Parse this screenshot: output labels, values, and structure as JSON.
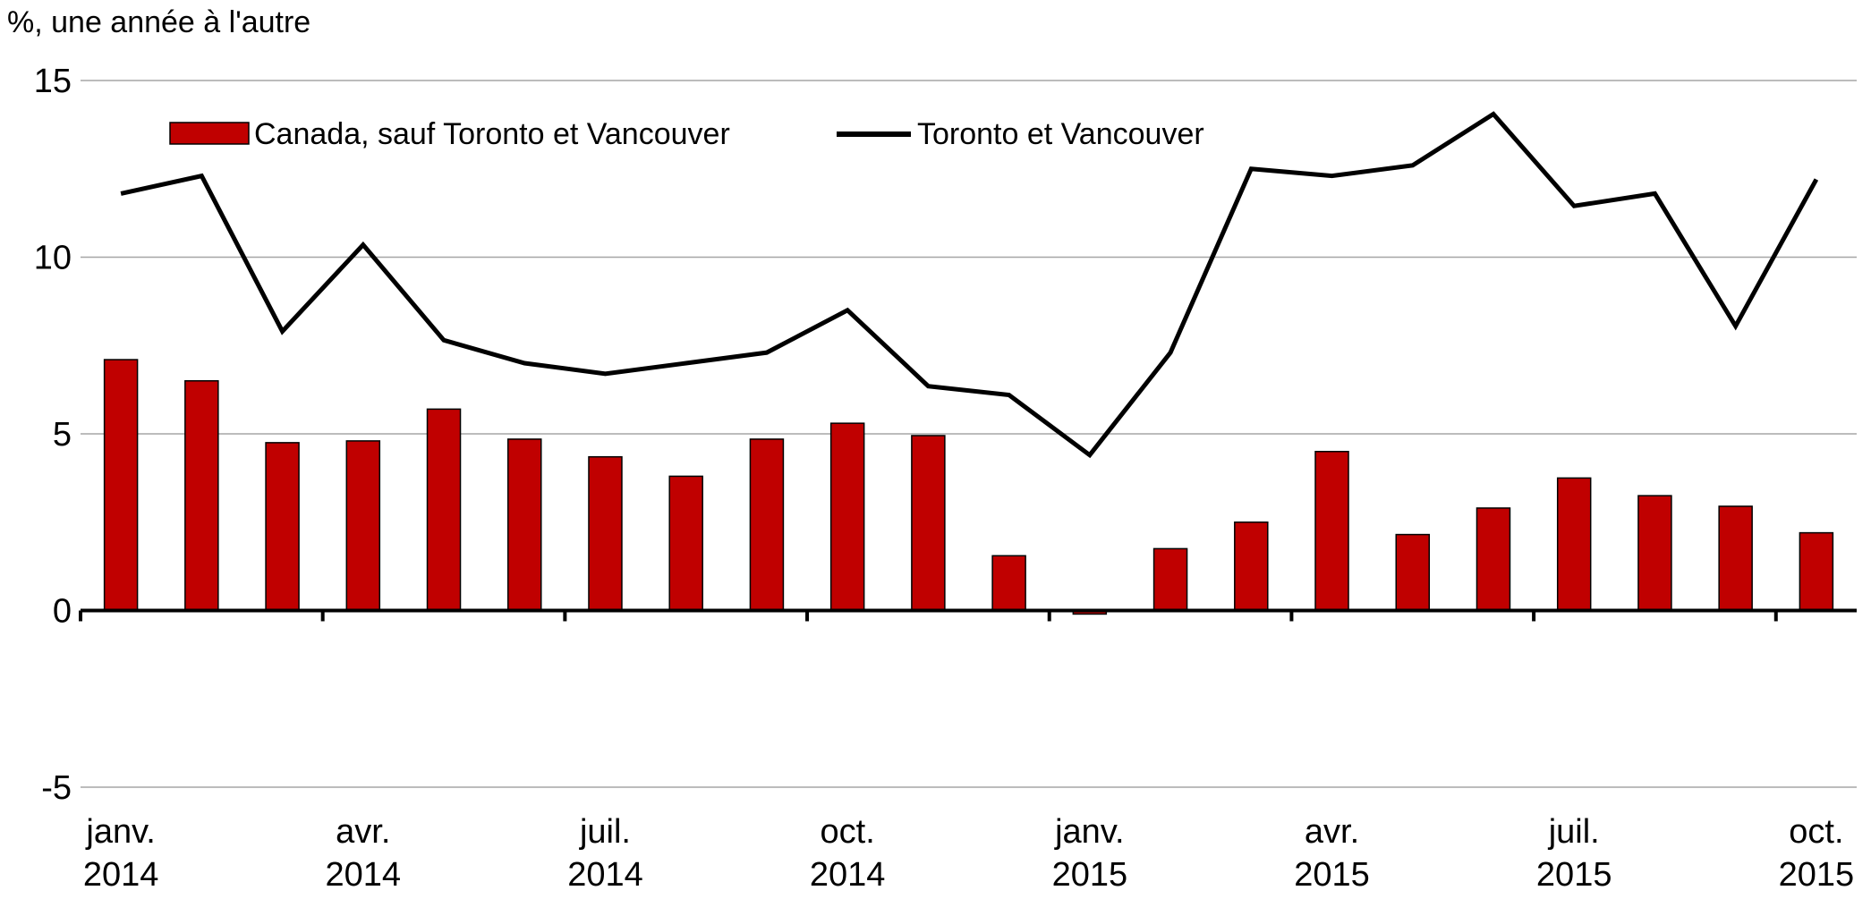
{
  "chart_data": {
    "type": "bar",
    "ylabel": "%, une année à l'autre",
    "ylim": [
      -5,
      15
    ],
    "yticks": [
      15,
      10,
      5,
      0,
      -5
    ],
    "ytick_labels": [
      "15",
      "10",
      "5",
      "0",
      "-5"
    ],
    "grid": true,
    "legend_position": "top",
    "x": [
      "2014-01",
      "2014-02",
      "2014-03",
      "2014-04",
      "2014-05",
      "2014-06",
      "2014-07",
      "2014-08",
      "2014-09",
      "2014-10",
      "2014-11",
      "2014-12",
      "2015-01",
      "2015-02",
      "2015-03",
      "2015-04",
      "2015-05",
      "2015-06",
      "2015-07",
      "2015-08",
      "2015-09",
      "2015-10"
    ],
    "xtick_labels": [
      {
        "month": "janv.",
        "year": "2014"
      },
      {
        "month": "avr.",
        "year": "2014"
      },
      {
        "month": "juil.",
        "year": "2014"
      },
      {
        "month": "oct.",
        "year": "2014"
      },
      {
        "month": "janv.",
        "year": "2015"
      },
      {
        "month": "avr.",
        "year": "2015"
      },
      {
        "month": "juil.",
        "year": "2015"
      },
      {
        "month": "oct.",
        "year": "2015"
      }
    ],
    "series": [
      {
        "name": "Canada, sauf Toronto et Vancouver",
        "kind": "bar",
        "color": "#c00000",
        "values": [
          7.1,
          6.5,
          4.75,
          4.8,
          5.7,
          4.85,
          4.35,
          3.8,
          4.85,
          5.3,
          4.95,
          1.55,
          -0.1,
          1.75,
          2.5,
          4.5,
          2.15,
          2.9,
          3.75,
          3.25,
          2.95,
          2.2
        ]
      },
      {
        "name": "Toronto et Vancouver",
        "kind": "line",
        "color": "#000000",
        "values": [
          11.8,
          12.3,
          7.9,
          10.35,
          7.65,
          7.0,
          6.7,
          7.0,
          7.3,
          8.5,
          6.35,
          6.1,
          4.4,
          7.3,
          12.5,
          12.3,
          12.6,
          14.05,
          11.45,
          11.8,
          8.05,
          12.2
        ]
      }
    ]
  }
}
